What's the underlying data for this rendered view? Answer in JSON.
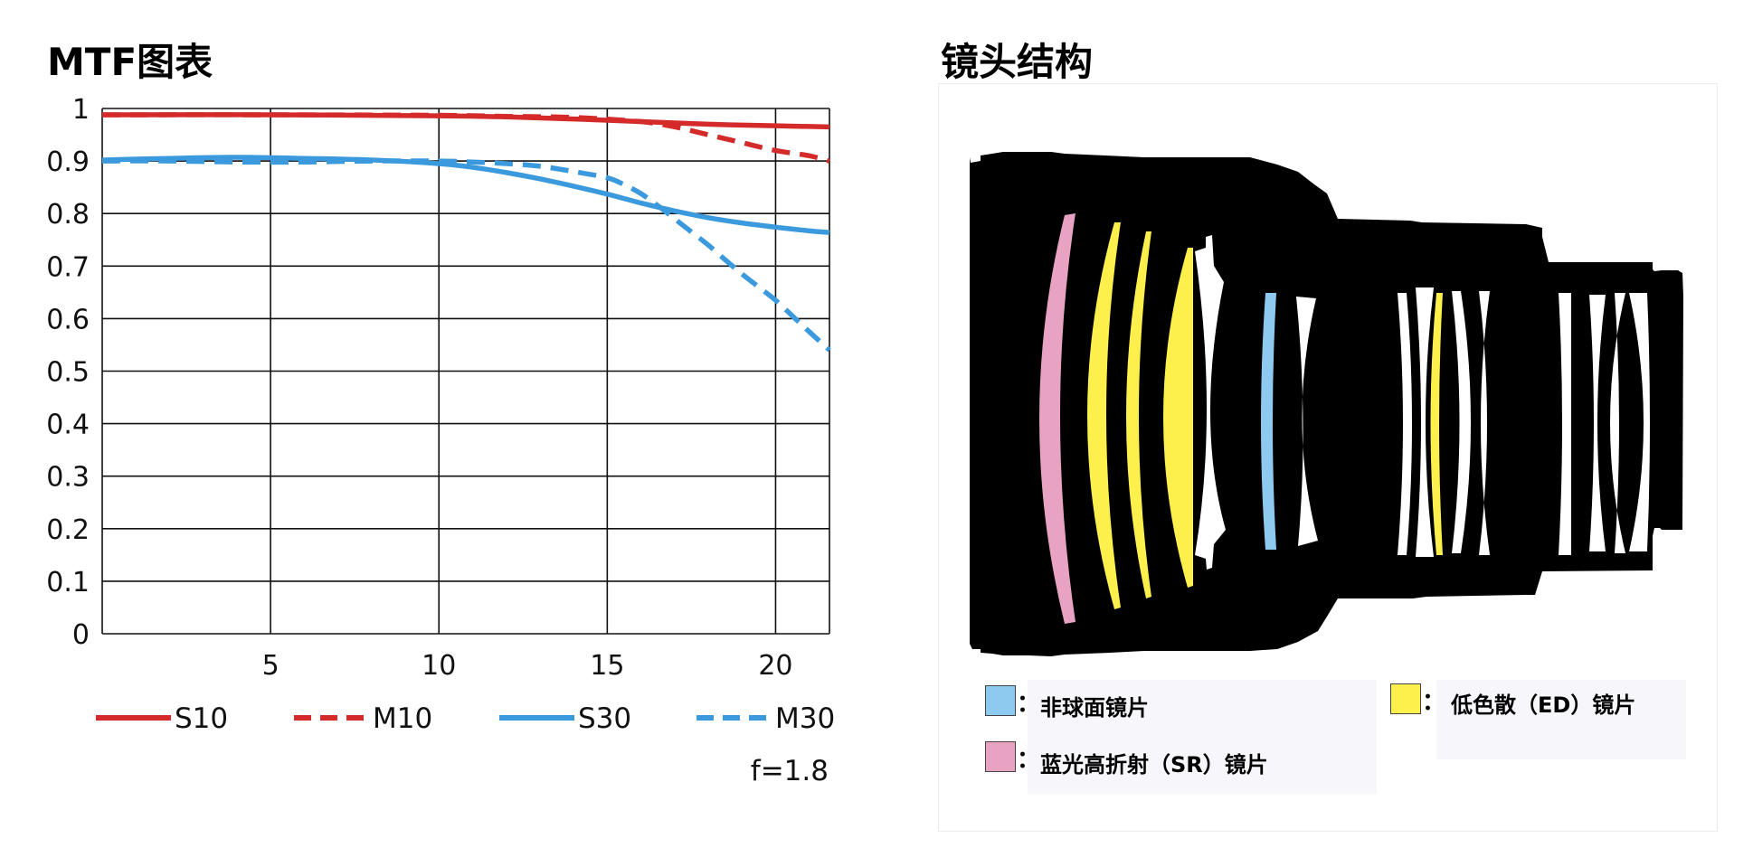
{
  "mtf_title": "MTF图表",
  "lens_title": "镜头结构",
  "chart_data": {
    "type": "line",
    "title": "MTF图表",
    "xlabel": "",
    "ylabel": "",
    "xlim": [
      0,
      21.6
    ],
    "ylim": [
      0,
      1
    ],
    "xticks": [
      5,
      10,
      15,
      20
    ],
    "yticks": [
      0,
      0.1,
      0.2,
      0.3,
      0.4,
      0.5,
      0.6,
      0.7,
      0.8,
      0.9,
      1
    ],
    "ytick_labels": [
      "0",
      "0.1",
      "0.2",
      "0.3",
      "0.4",
      "0.5",
      "0.6",
      "0.7",
      "0.8",
      "0.9",
      "1"
    ],
    "xtick_labels": [
      "5",
      "10",
      "15",
      "20"
    ],
    "grid": true,
    "legend_position": "bottom",
    "annotation": "f=1.8",
    "series": [
      {
        "name": "S10",
        "color": "#d42a2a",
        "dash": "solid",
        "x": [
          0,
          5,
          10,
          12,
          14,
          16,
          18,
          20,
          21.6
        ],
        "y": [
          0.988,
          0.988,
          0.986,
          0.984,
          0.98,
          0.975,
          0.97,
          0.967,
          0.965
        ]
      },
      {
        "name": "M10",
        "color": "#d42a2a",
        "dash": "dashed",
        "x": [
          0,
          5,
          10,
          12,
          14,
          16,
          17,
          18,
          19,
          20,
          21,
          21.6
        ],
        "y": [
          0.988,
          0.988,
          0.987,
          0.985,
          0.983,
          0.975,
          0.965,
          0.95,
          0.935,
          0.92,
          0.91,
          0.9
        ]
      },
      {
        "name": "S30",
        "color": "#3b99dd",
        "dash": "solid",
        "x": [
          0,
          2,
          4,
          6,
          8,
          10,
          11,
          12,
          13,
          14,
          15,
          16,
          17,
          18,
          19,
          20,
          21,
          21.6
        ],
        "y": [
          0.902,
          0.905,
          0.907,
          0.905,
          0.902,
          0.895,
          0.888,
          0.878,
          0.866,
          0.852,
          0.837,
          0.82,
          0.805,
          0.792,
          0.782,
          0.774,
          0.767,
          0.764
        ]
      },
      {
        "name": "M30",
        "color": "#3b99dd",
        "dash": "dashed",
        "x": [
          0,
          2,
          4,
          6,
          8,
          10,
          11,
          12,
          13,
          14,
          15,
          15.5,
          16,
          16.5,
          17,
          17.5,
          18,
          18.5,
          19,
          19.5,
          20,
          20.5,
          21,
          21.6
        ],
        "y": [
          0.9,
          0.9,
          0.898,
          0.898,
          0.9,
          0.9,
          0.898,
          0.895,
          0.89,
          0.88,
          0.868,
          0.855,
          0.838,
          0.815,
          0.79,
          0.765,
          0.74,
          0.712,
          0.685,
          0.66,
          0.635,
          0.605,
          0.575,
          0.54
        ]
      }
    ]
  },
  "lens_legend": {
    "aspherical": {
      "label": "非球面镜片",
      "color": "#8ec9ef"
    },
    "sr": {
      "label": "蓝光高折射（SR）镜片",
      "color": "#e8a2c2"
    },
    "ed": {
      "label": "低色散（ED）镜片",
      "color": "#fdf04c"
    },
    "colon": "："
  }
}
